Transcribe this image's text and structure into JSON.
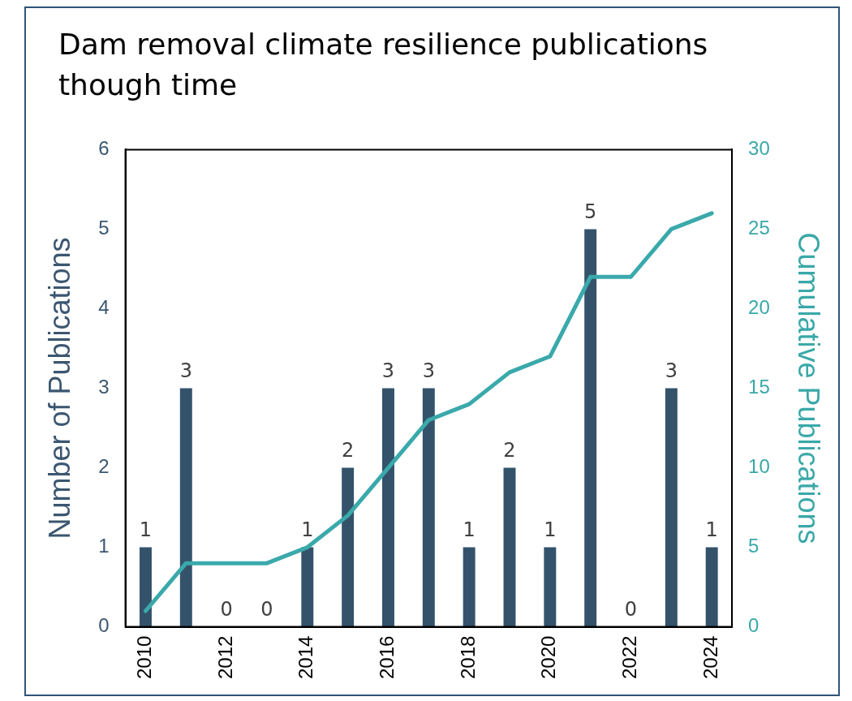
{
  "chart_data": {
    "type": "bar",
    "title": "Dam removal climate resilience publications though time",
    "ylabel": "Number of Publications",
    "y2label": "Cumulative Publications",
    "categories": [
      "2010",
      null,
      "2012",
      null,
      "2014",
      null,
      "2016",
      null,
      "2018",
      null,
      "2020",
      null,
      "2022",
      null,
      "2024"
    ],
    "series": [
      {
        "color": "#34536b",
        "values": [
          1,
          3,
          0,
          0,
          1,
          2,
          3,
          3,
          1,
          2,
          1,
          5,
          0,
          3,
          1
        ],
        "value_labels": [
          "1",
          "3",
          "0",
          "0",
          "1",
          "2",
          "3",
          "3",
          "1",
          "2",
          "1",
          "5",
          "0",
          "3",
          "1"
        ]
      },
      {
        "type": "line",
        "axis": "y2",
        "color": "#3aa9ab",
        "values": [
          1,
          4,
          4,
          4,
          5,
          7,
          10,
          13,
          14,
          16,
          17,
          22,
          22,
          25,
          26
        ]
      }
    ],
    "ylim": [
      0,
      6
    ],
    "yticks": [
      0,
      1,
      2,
      3,
      4,
      5,
      6
    ],
    "y2lim": [
      0,
      30
    ],
    "y2ticks": [
      0,
      5,
      10,
      15,
      20,
      25,
      30
    ],
    "grid": false,
    "legend": false,
    "marker": "none"
  }
}
